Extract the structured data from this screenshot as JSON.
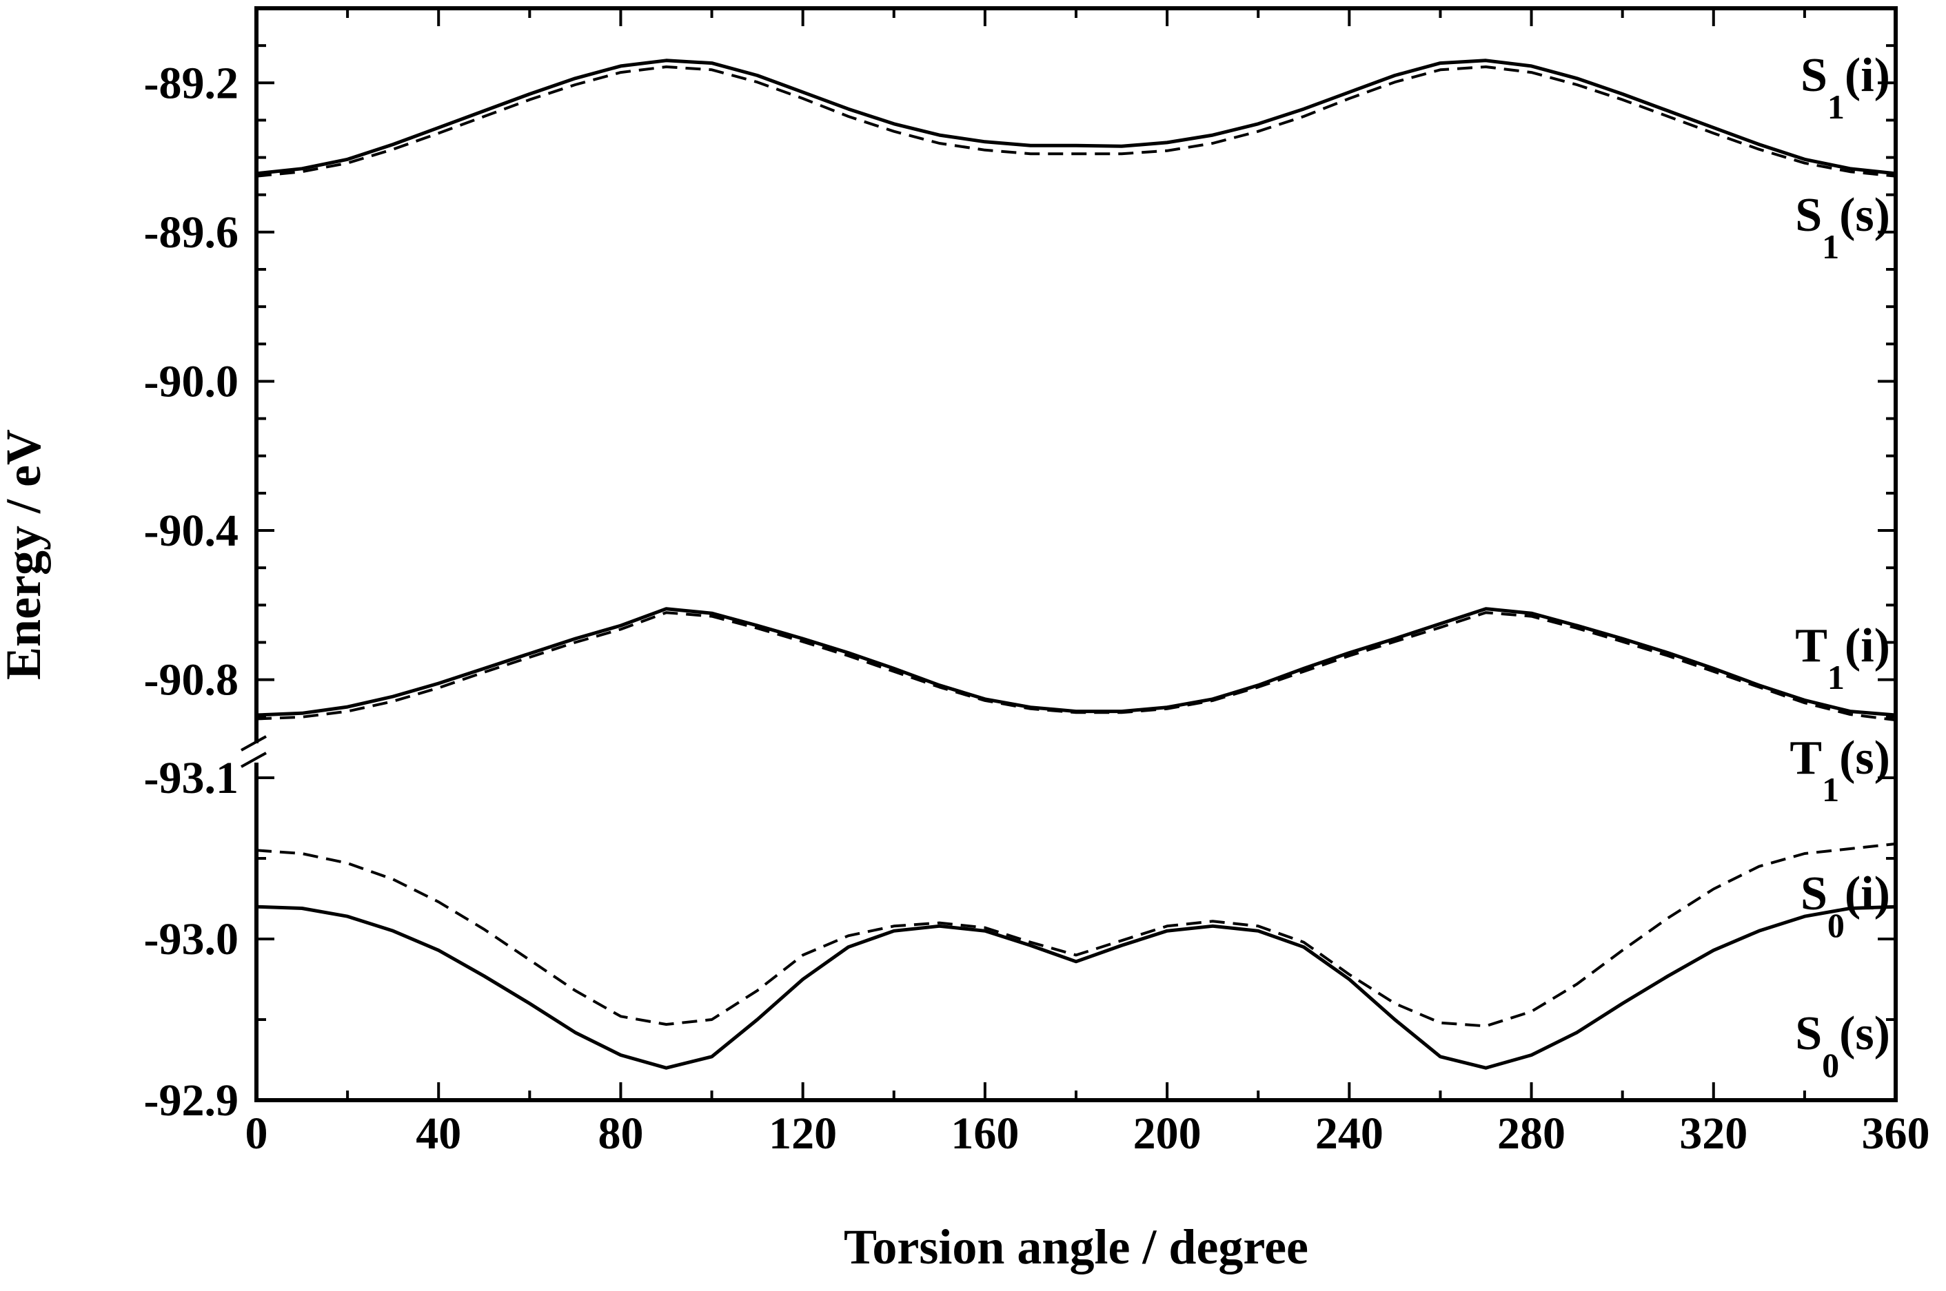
{
  "chart_data": {
    "type": "line",
    "xlabel": "Torsion angle / degree",
    "ylabel": "Energy / eV",
    "xlim": [
      0,
      360
    ],
    "x_ticks": [
      0,
      40,
      80,
      120,
      160,
      200,
      240,
      280,
      320,
      360
    ],
    "x_tick_labels": [
      "0",
      "40",
      "80",
      "120",
      "160",
      "200",
      "240",
      "280",
      "320",
      "360"
    ],
    "y_axis_broken": true,
    "y_segments": [
      {
        "ylim": [
          -90.93,
          -89.0
        ],
        "ticks": [
          -89.2,
          -89.6,
          -90.0,
          -90.4,
          -90.8
        ],
        "tick_labels": [
          "-89.2",
          "-89.6",
          "-90.0",
          "-90.4",
          "-90.8"
        ]
      },
      {
        "ylim": [
          -93.1,
          -92.9
        ],
        "ticks": [
          -92.9,
          -93.0,
          -93.1
        ],
        "tick_labels": [
          "-92.9",
          "-93.0",
          "-93.1"
        ]
      }
    ],
    "x": [
      0,
      10,
      20,
      30,
      40,
      50,
      60,
      70,
      80,
      90,
      100,
      110,
      120,
      130,
      140,
      150,
      160,
      170,
      180,
      190,
      200,
      210,
      220,
      230,
      240,
      250,
      260,
      270,
      280,
      290,
      300,
      310,
      320,
      330,
      340,
      350,
      360
    ],
    "series": [
      {
        "state": "S",
        "sub": "1",
        "suffix": "(i)",
        "style": "solid",
        "segment": 0,
        "values": [
          -89.443,
          -89.43,
          -89.405,
          -89.365,
          -89.32,
          -89.275,
          -89.23,
          -89.188,
          -89.155,
          -89.14,
          -89.147,
          -89.18,
          -89.225,
          -89.27,
          -89.31,
          -89.34,
          -89.358,
          -89.368,
          -89.368,
          -89.37,
          -89.36,
          -89.34,
          -89.31,
          -89.27,
          -89.225,
          -89.18,
          -89.147,
          -89.14,
          -89.155,
          -89.188,
          -89.23,
          -89.275,
          -89.32,
          -89.365,
          -89.405,
          -89.43,
          -89.443
        ]
      },
      {
        "state": "S",
        "sub": "1",
        "suffix": "(s)",
        "style": "dashed",
        "segment": 0,
        "values": [
          -89.45,
          -89.438,
          -89.415,
          -89.378,
          -89.335,
          -89.29,
          -89.245,
          -89.205,
          -89.172,
          -89.157,
          -89.165,
          -89.198,
          -89.242,
          -89.29,
          -89.33,
          -89.362,
          -89.38,
          -89.39,
          -89.39,
          -89.39,
          -89.382,
          -89.362,
          -89.33,
          -89.29,
          -89.242,
          -89.198,
          -89.165,
          -89.157,
          -89.172,
          -89.205,
          -89.245,
          -89.29,
          -89.335,
          -89.378,
          -89.415,
          -89.438,
          -89.45
        ]
      },
      {
        "state": "T",
        "sub": "1",
        "suffix": "(i)",
        "style": "solid",
        "segment": 0,
        "values": [
          -90.895,
          -90.89,
          -90.873,
          -90.845,
          -90.81,
          -90.77,
          -90.73,
          -90.69,
          -90.655,
          -90.61,
          -90.622,
          -90.655,
          -90.69,
          -90.728,
          -90.77,
          -90.815,
          -90.852,
          -90.874,
          -90.885,
          -90.885,
          -90.874,
          -90.852,
          -90.815,
          -90.77,
          -90.728,
          -90.69,
          -90.65,
          -90.61,
          -90.622,
          -90.655,
          -90.69,
          -90.728,
          -90.77,
          -90.815,
          -90.855,
          -90.885,
          -90.895
        ]
      },
      {
        "state": "T",
        "sub": "1",
        "suffix": "(s)",
        "style": "dashed",
        "segment": 0,
        "values": [
          -90.905,
          -90.9,
          -90.885,
          -90.858,
          -90.822,
          -90.78,
          -90.74,
          -90.7,
          -90.665,
          -90.62,
          -90.63,
          -90.662,
          -90.698,
          -90.736,
          -90.778,
          -90.82,
          -90.856,
          -90.878,
          -90.888,
          -90.888,
          -90.878,
          -90.856,
          -90.82,
          -90.778,
          -90.736,
          -90.698,
          -90.66,
          -90.62,
          -90.63,
          -90.662,
          -90.698,
          -90.736,
          -90.778,
          -90.82,
          -90.862,
          -90.893,
          -90.908
        ]
      },
      {
        "state": "S",
        "sub": "0",
        "suffix": "(i)",
        "style": "solid",
        "segment": 1,
        "values": [
          -93.02,
          -93.019,
          -93.014,
          -93.005,
          -92.993,
          -92.977,
          -92.96,
          -92.942,
          -92.928,
          -92.92,
          -92.927,
          -92.95,
          -92.975,
          -92.995,
          -93.005,
          -93.008,
          -93.005,
          -92.996,
          -92.986,
          -92.996,
          -93.005,
          -93.008,
          -93.005,
          -92.995,
          -92.975,
          -92.95,
          -92.927,
          -92.92,
          -92.928,
          -92.942,
          -92.96,
          -92.977,
          -92.993,
          -93.005,
          -93.014,
          -93.019,
          -93.02
        ]
      },
      {
        "state": "S",
        "sub": "0",
        "suffix": "(s)",
        "style": "dashed",
        "segment": 1,
        "values": [
          -93.055,
          -93.053,
          -93.047,
          -93.037,
          -93.023,
          -93.006,
          -92.987,
          -92.968,
          -92.952,
          -92.947,
          -92.95,
          -92.968,
          -92.99,
          -93.002,
          -93.008,
          -93.01,
          -93.007,
          -92.998,
          -92.99,
          -92.999,
          -93.008,
          -93.011,
          -93.008,
          -92.998,
          -92.978,
          -92.96,
          -92.948,
          -92.946,
          -92.955,
          -92.972,
          -92.993,
          -93.013,
          -93.031,
          -93.045,
          -93.053,
          -93.056,
          -93.059
        ]
      }
    ]
  }
}
